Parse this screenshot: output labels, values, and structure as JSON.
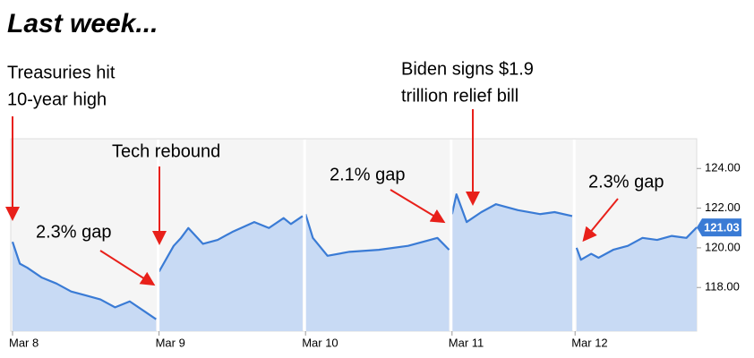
{
  "chart_data": {
    "type": "line",
    "title": "Last week...",
    "x": [
      0,
      0.05,
      0.1,
      0.2,
      0.3,
      0.4,
      0.5,
      0.6,
      0.7,
      0.8,
      0.9,
      0.98,
      0.99,
      1,
      1.1,
      1.15,
      1.2,
      1.3,
      1.4,
      1.5,
      1.65,
      1.75,
      1.85,
      1.9,
      1.98,
      1.99,
      2,
      2.05,
      2.15,
      2.3,
      2.5,
      2.7,
      2.85,
      2.9,
      2.98,
      2.99,
      3,
      3.03,
      3.1,
      3.2,
      3.3,
      3.45,
      3.6,
      3.7,
      3.82,
      3.83,
      3.85,
      3.88,
      3.95,
      4.0,
      4.1,
      4.2,
      4.3,
      4.4,
      4.5,
      4.6,
      4.67
    ],
    "series": [
      {
        "color": "#3a7bd5",
        "fill": "#c8daf4",
        "values": [
          120.3,
          119.2,
          119.0,
          118.5,
          118.2,
          117.8,
          117.6,
          117.4,
          117.0,
          117.3,
          116.8,
          116.4,
          null,
          118.8,
          120.1,
          120.5,
          121.0,
          120.2,
          120.4,
          120.8,
          121.3,
          121.0,
          121.5,
          121.2,
          121.6,
          null,
          121.7,
          120.5,
          119.6,
          119.8,
          119.9,
          120.1,
          120.4,
          120.5,
          119.9,
          null,
          121.7,
          122.7,
          121.3,
          121.8,
          122.2,
          121.9,
          121.7,
          121.8,
          121.6,
          null,
          120.0,
          119.4,
          119.7,
          119.5,
          119.9,
          120.1,
          120.5,
          120.4,
          120.6,
          120.5,
          121.03
        ]
      }
    ],
    "xlim": [
      0,
      4.67
    ],
    "xticks": [
      {
        "value": 0,
        "label": "Mar 8"
      },
      {
        "value": 1,
        "label": "Mar 9"
      },
      {
        "value": 2,
        "label": "Mar 10"
      },
      {
        "value": 3,
        "label": "Mar 11"
      },
      {
        "value": 3.84,
        "label": "Mar 12"
      }
    ],
    "ylim": [
      115.8,
      125.5
    ],
    "yticks": [
      {
        "value": 118,
        "label": "118.00"
      },
      {
        "value": 120,
        "label": "120.00"
      },
      {
        "value": 122,
        "label": "122.00"
      },
      {
        "value": 124,
        "label": "124.00"
      }
    ],
    "annotations": [
      {
        "lines": [
          "Treasuries hit",
          "10-year high"
        ]
      },
      {
        "lines": [
          "Tech rebound"
        ]
      },
      {
        "lines": [
          "Biden signs $1.9",
          "trillion relief bill"
        ]
      },
      {
        "lines": [
          "2.3% gap"
        ]
      },
      {
        "lines": [
          "2.1% gap"
        ]
      },
      {
        "lines": [
          "2.3% gap"
        ]
      }
    ]
  }
}
